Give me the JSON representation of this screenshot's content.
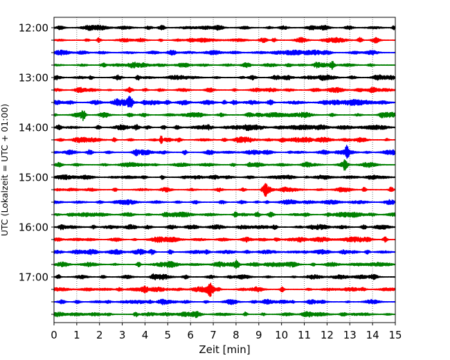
{
  "chart_data": {
    "type": "line",
    "title": "",
    "xlabel": "Zeit  [min]",
    "ylabel": "UTC (Lokalzeit = UTC + 01:00)",
    "xlim": [
      0,
      15
    ],
    "x_ticks": [
      "0",
      "1",
      "2",
      "3",
      "4",
      "5",
      "6",
      "7",
      "8",
      "9",
      "10",
      "11",
      "12",
      "13",
      "14",
      "15"
    ],
    "vertical_grid": "dotted",
    "y_tick_labels": [
      "12:00",
      "13:00",
      "14:00",
      "15:00",
      "16:00",
      "17:00"
    ],
    "trace_interval_minutes": 15,
    "trace_start": "12:00",
    "trace_end": "17:45",
    "trace_colors": [
      "#000000",
      "#ff0000",
      "#0000ff",
      "#008000"
    ],
    "traces": [
      "12:00",
      "12:15",
      "12:30",
      "12:45",
      "13:00",
      "13:15",
      "13:30",
      "13:45",
      "14:00",
      "14:15",
      "14:30",
      "14:45",
      "15:00",
      "15:15",
      "15:30",
      "15:45",
      "16:00",
      "16:15",
      "16:30",
      "16:45",
      "17:00",
      "17:15",
      "17:30",
      "17:45"
    ]
  }
}
